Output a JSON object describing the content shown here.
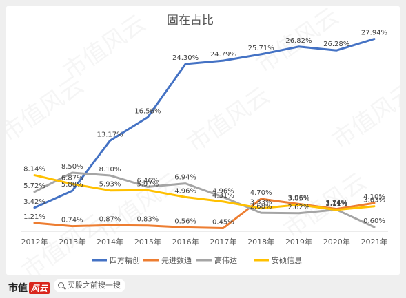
{
  "chart_data": {
    "type": "line",
    "title": "固在占比",
    "categories": [
      "2012年",
      "2013年",
      "2014年",
      "2015年",
      "2016年",
      "2017年",
      "2018年",
      "2019年",
      "2020年",
      "2021年"
    ],
    "ylim": [
      0,
      30
    ],
    "grid": false,
    "legend_position": "bottom",
    "series": [
      {
        "name": "四方精创",
        "color": "#4472c4",
        "values": [
          3.42,
          5.88,
          13.17,
          16.56,
          24.3,
          24.79,
          25.71,
          26.82,
          26.28,
          27.94
        ],
        "labels": [
          "3.42%",
          "5.88%",
          "13.17%",
          "16.56%",
          "24.30%",
          "24.79%",
          "25.71%",
          "26.82%",
          "26.28%",
          "27.94%"
        ]
      },
      {
        "name": "先进数通",
        "color": "#ed7d31",
        "values": [
          1.21,
          0.74,
          0.87,
          0.83,
          0.56,
          0.45,
          4.7,
          3.96,
          3.24,
          4.1
        ],
        "labels": [
          "1.21%",
          "0.74%",
          "0.87%",
          "0.83%",
          "0.56%",
          "0.45%",
          "4.70%",
          "3.96%",
          "3.24%",
          "4.10%"
        ]
      },
      {
        "name": "高伟达",
        "color": "#a5a5a5",
        "values": [
          5.72,
          8.5,
          8.1,
          6.46,
          6.94,
          4.96,
          2.68,
          2.62,
          3.14,
          0.6
        ],
        "labels": [
          "5.72%",
          "8.50%",
          "8.10%",
          "6.46%",
          "6.94%",
          "4.96%",
          "2.68%",
          "2.62%",
          "3.14%",
          "0.60%"
        ]
      },
      {
        "name": "安硕信息",
        "color": "#ffc000",
        "values": [
          8.14,
          6.87,
          5.93,
          5.97,
          4.96,
          4.31,
          3.33,
          3.85,
          3.11,
          3.63
        ],
        "labels": [
          "8.14%",
          "6.87%",
          "5.93%",
          "5.97%",
          "4.96%",
          "4.31%",
          "3.33%",
          "3.85%",
          "3.11%",
          "3.63%"
        ]
      }
    ]
  },
  "watermark": "市值风云",
  "footer": {
    "logo_text": "市值",
    "logo_tag": "风云",
    "search_text": "买股之前搜一搜"
  }
}
